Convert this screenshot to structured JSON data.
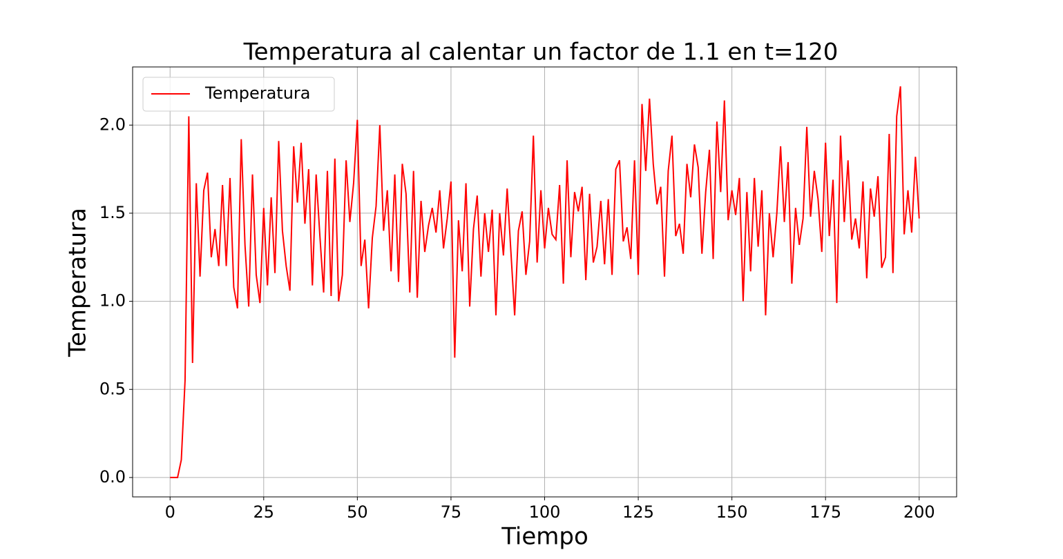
{
  "chart_data": {
    "type": "line",
    "title": "Temperatura al calentar un factor de 1.1 en t=120",
    "x_label": "Tiempo",
    "y_label": "Temperatura",
    "x": [
      0,
      1,
      2,
      3,
      4,
      5,
      6,
      7,
      8,
      9,
      10,
      11,
      12,
      13,
      14,
      15,
      16,
      17,
      18,
      19,
      20,
      21,
      22,
      23,
      24,
      25,
      26,
      27,
      28,
      29,
      30,
      31,
      32,
      33,
      34,
      35,
      36,
      37,
      38,
      39,
      40,
      41,
      42,
      43,
      44,
      45,
      46,
      47,
      48,
      49,
      50,
      51,
      52,
      53,
      54,
      55,
      56,
      57,
      58,
      59,
      60,
      61,
      62,
      63,
      64,
      65,
      66,
      67,
      68,
      69,
      70,
      71,
      72,
      73,
      74,
      75,
      76,
      77,
      78,
      79,
      80,
      81,
      82,
      83,
      84,
      85,
      86,
      87,
      88,
      89,
      90,
      91,
      92,
      93,
      94,
      95,
      96,
      97,
      98,
      99,
      100,
      101,
      102,
      103,
      104,
      105,
      106,
      107,
      108,
      109,
      110,
      111,
      112,
      113,
      114,
      115,
      116,
      117,
      118,
      119,
      120,
      121,
      122,
      123,
      124,
      125,
      126,
      127,
      128,
      129,
      130,
      131,
      132,
      133,
      134,
      135,
      136,
      137,
      138,
      139,
      140,
      141,
      142,
      143,
      144,
      145,
      146,
      147,
      148,
      149,
      150,
      151,
      152,
      153,
      154,
      155,
      156,
      157,
      158,
      159,
      160,
      161,
      162,
      163,
      164,
      165,
      166,
      167,
      168,
      169,
      170,
      171,
      172,
      173,
      174,
      175,
      176,
      177,
      178,
      179,
      180,
      181,
      182,
      183,
      184,
      185,
      186,
      187,
      188,
      189,
      190,
      191,
      192,
      193,
      194,
      195,
      196,
      197,
      198,
      199,
      200
    ],
    "series": [
      {
        "name": "Temperatura",
        "color": "#ff0000",
        "values": [
          0,
          0,
          0,
          0.1,
          0.55,
          2.05,
          0.65,
          1.67,
          1.14,
          1.63,
          1.73,
          1.25,
          1.41,
          1.2,
          1.66,
          1.2,
          1.7,
          1.08,
          0.96,
          1.92,
          1.32,
          0.97,
          1.72,
          1.15,
          0.99,
          1.53,
          1.09,
          1.59,
          1.16,
          1.91,
          1.4,
          1.2,
          1.06,
          1.88,
          1.56,
          1.9,
          1.44,
          1.75,
          1.09,
          1.72,
          1.37,
          1.05,
          1.74,
          1.03,
          1.81,
          1.0,
          1.15,
          1.8,
          1.45,
          1.67,
          2.03,
          1.2,
          1.35,
          0.96,
          1.36,
          1.54,
          2.0,
          1.4,
          1.63,
          1.17,
          1.72,
          1.11,
          1.78,
          1.61,
          1.05,
          1.74,
          1.02,
          1.57,
          1.28,
          1.43,
          1.53,
          1.39,
          1.63,
          1.3,
          1.47,
          1.68,
          0.68,
          1.46,
          1.17,
          1.67,
          0.97,
          1.41,
          1.6,
          1.14,
          1.5,
          1.28,
          1.52,
          0.92,
          1.5,
          1.26,
          1.64,
          1.28,
          0.92,
          1.4,
          1.51,
          1.15,
          1.34,
          1.94,
          1.22,
          1.63,
          1.3,
          1.53,
          1.38,
          1.35,
          1.66,
          1.1,
          1.8,
          1.25,
          1.62,
          1.51,
          1.65,
          1.12,
          1.61,
          1.22,
          1.31,
          1.57,
          1.21,
          1.58,
          1.15,
          1.75,
          1.8,
          1.34,
          1.42,
          1.24,
          1.8,
          1.15,
          2.12,
          1.74,
          2.15,
          1.78,
          1.55,
          1.65,
          1.14,
          1.74,
          1.94,
          1.37,
          1.44,
          1.27,
          1.78,
          1.59,
          1.89,
          1.76,
          1.27,
          1.62,
          1.86,
          1.24,
          2.02,
          1.62,
          2.14,
          1.46,
          1.63,
          1.49,
          1.7,
          1.0,
          1.62,
          1.17,
          1.7,
          1.31,
          1.63,
          0.92,
          1.5,
          1.25,
          1.5,
          1.88,
          1.45,
          1.79,
          1.1,
          1.53,
          1.32,
          1.47,
          1.99,
          1.48,
          1.74,
          1.58,
          1.28,
          1.9,
          1.37,
          1.69,
          0.99,
          1.94,
          1.45,
          1.8,
          1.35,
          1.47,
          1.3,
          1.68,
          1.13,
          1.64,
          1.48,
          1.71,
          1.19,
          1.25,
          1.95,
          1.16,
          2.05,
          2.22,
          1.38,
          1.63,
          1.39,
          1.82,
          1.47
        ]
      }
    ],
    "xlim": [
      -10,
      210
    ],
    "ylim": [
      -0.11,
      2.33
    ],
    "xticks": [
      0,
      25,
      50,
      75,
      100,
      125,
      150,
      175,
      200
    ],
    "yticks": [
      {
        "value": 0,
        "label": "0.0"
      },
      0.5,
      {
        "value": 1,
        "label": "1.0"
      },
      1.5,
      {
        "value": 2,
        "label": "2.0"
      }
    ],
    "grid": true,
    "legend": "upper left"
  }
}
